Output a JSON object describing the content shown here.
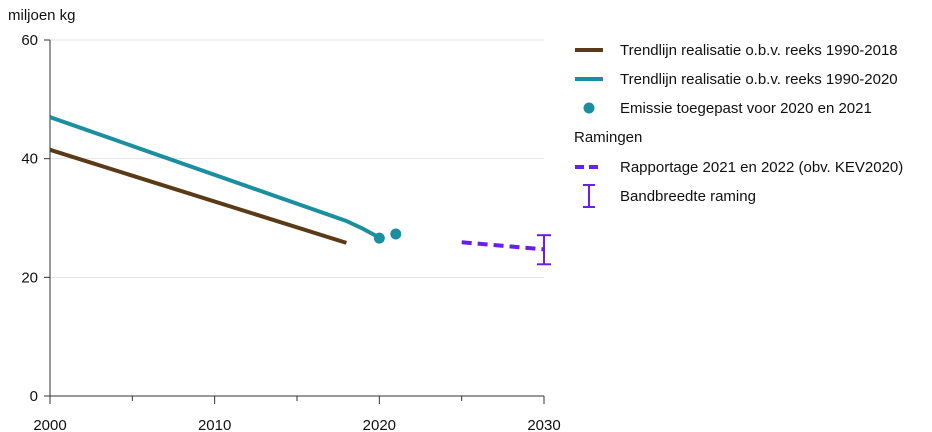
{
  "chart_data": {
    "type": "line",
    "ylabel": "miljoen kg",
    "xlim": [
      2000,
      2030
    ],
    "ylim": [
      0,
      60
    ],
    "yticks": [
      0,
      20,
      40,
      60
    ],
    "xticks": [
      2000,
      2010,
      2020,
      2030
    ],
    "x_minor_ticks": [
      2005,
      2015,
      2025
    ],
    "grid": "horizontal",
    "legend_position": "right",
    "series": [
      {
        "name": "Trendlijn realisatie o.b.v. reeks 1990-2018",
        "kind": "line",
        "color": "#5b3a17",
        "points": [
          [
            2000,
            41.5
          ],
          [
            2018,
            25.8
          ]
        ]
      },
      {
        "name": "Trendlijn realisatie o.b.v. reeks 1990-2020",
        "kind": "line",
        "color": "#1b8fa0",
        "points": [
          [
            2000,
            47.0
          ],
          [
            2018,
            29.5
          ],
          [
            2019,
            28.2
          ],
          [
            2020,
            26.7
          ]
        ]
      },
      {
        "name": "Emissie toegepast voor 2020 en 2021",
        "kind": "points",
        "color": "#1b8fa0",
        "points": [
          [
            2020,
            26.6
          ],
          [
            2021,
            27.3
          ]
        ]
      },
      {
        "name": "Rapportage 2021 en 2022 (obv. KEV2020)",
        "kind": "dashed",
        "color": "#6a1ee8",
        "points": [
          [
            2025,
            25.9
          ],
          [
            2030,
            24.7
          ]
        ]
      },
      {
        "name": "Bandbreedte raming",
        "kind": "errorbar",
        "color": "#6a1ee8",
        "x": 2030,
        "low": 22.2,
        "high": 27.1
      }
    ],
    "legend_heading": "Ramingen"
  }
}
